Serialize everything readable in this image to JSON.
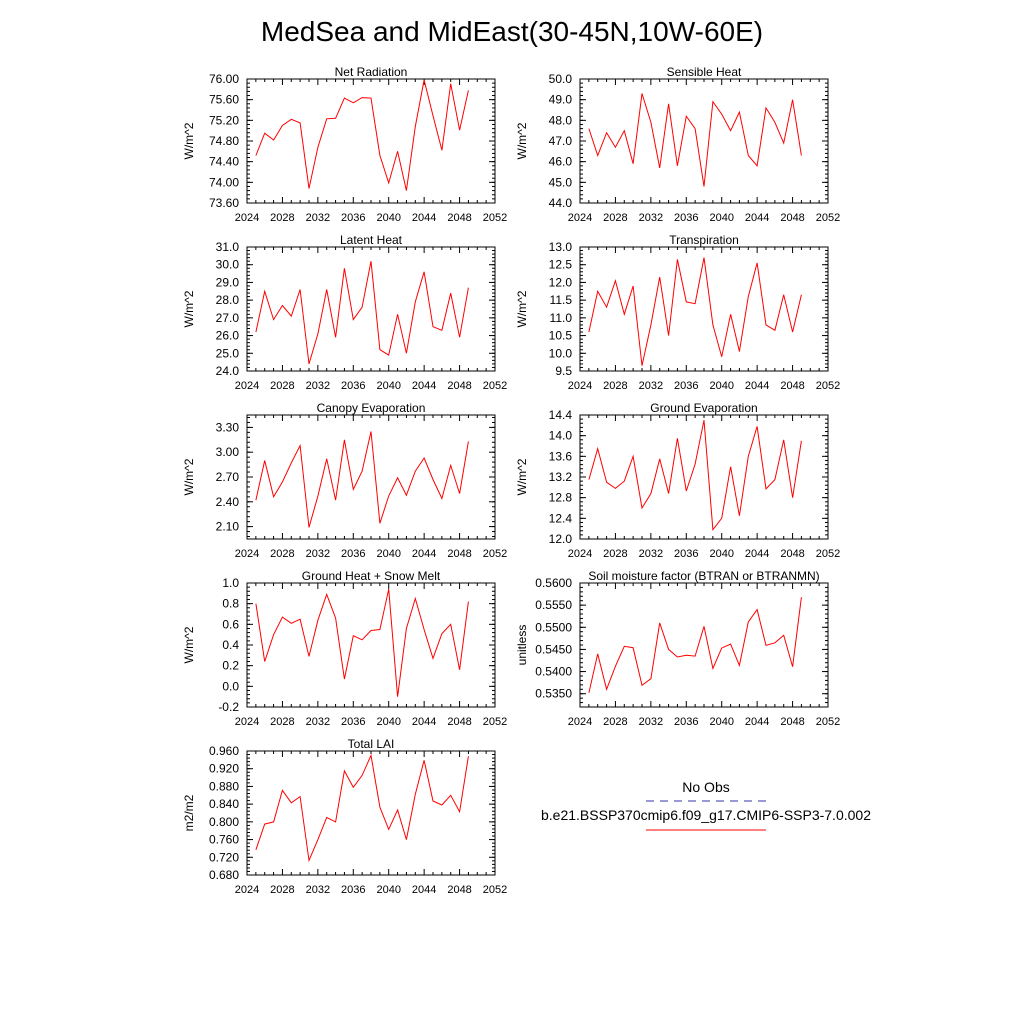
{
  "page_title": "MedSea and MidEast(30-45N,10W-60E)",
  "legend": {
    "obs_label": "No Obs",
    "obs_color": "#3333aa",
    "model_label": "b.e21.BSSP370cmip6.f09_g17.CMIP6-SSP3-7.0.002",
    "model_color": "#ff0000"
  },
  "chart_data": [
    {
      "type": "line",
      "title": "Net Radiation",
      "ylabel": "W/m^2",
      "xlim": [
        2024,
        2052
      ],
      "xticks": [
        "2024",
        "2028",
        "2032",
        "2036",
        "2040",
        "2044",
        "2048",
        "2052"
      ],
      "ylim": [
        73.6,
        76.0
      ],
      "yticks": [
        "73.60",
        "74.00",
        "74.40",
        "74.80",
        "75.20",
        "75.60",
        "76.00"
      ],
      "series": [
        {
          "x": [
            2025,
            2026,
            2027,
            2028,
            2029,
            2030,
            2031,
            2032,
            2033,
            2034,
            2035,
            2036,
            2037,
            2038,
            2039,
            2040,
            2041,
            2042,
            2043,
            2044,
            2045,
            2046,
            2047,
            2048,
            2049
          ],
          "y": [
            74.52,
            74.95,
            74.82,
            75.1,
            75.22,
            75.15,
            73.88,
            74.68,
            75.23,
            75.24,
            75.63,
            75.54,
            75.64,
            75.63,
            74.52,
            73.99,
            74.6,
            73.84,
            75.08,
            75.98,
            75.29,
            74.62,
            75.91,
            75.01,
            75.78
          ]
        }
      ]
    },
    {
      "type": "line",
      "title": "Sensible Heat",
      "ylabel": "W/m^2",
      "xlim": [
        2024,
        2052
      ],
      "xticks": [
        "2024",
        "2028",
        "2032",
        "2036",
        "2040",
        "2044",
        "2048",
        "2052"
      ],
      "ylim": [
        44.0,
        50.0
      ],
      "yticks": [
        "44.0",
        "45.0",
        "46.0",
        "47.0",
        "48.0",
        "49.0",
        "50.0"
      ],
      "series": [
        {
          "x": [
            2025,
            2026,
            2027,
            2028,
            2029,
            2030,
            2031,
            2032,
            2033,
            2034,
            2035,
            2036,
            2037,
            2038,
            2039,
            2040,
            2041,
            2042,
            2043,
            2044,
            2045,
            2046,
            2047,
            2048,
            2049
          ],
          "y": [
            47.6,
            46.3,
            47.4,
            46.7,
            47.5,
            45.9,
            49.3,
            47.9,
            45.7,
            48.8,
            45.8,
            48.2,
            47.6,
            44.8,
            48.9,
            48.3,
            47.5,
            48.4,
            46.3,
            45.8,
            48.6,
            47.9,
            46.9,
            49.0,
            46.3
          ]
        }
      ]
    },
    {
      "type": "line",
      "title": "Latent Heat",
      "ylabel": "W/m^2",
      "xlim": [
        2024,
        2052
      ],
      "xticks": [
        "2024",
        "2028",
        "2032",
        "2036",
        "2040",
        "2044",
        "2048",
        "2052"
      ],
      "ylim": [
        24.0,
        31.0
      ],
      "yticks": [
        "24.0",
        "25.0",
        "26.0",
        "27.0",
        "28.0",
        "29.0",
        "30.0",
        "31.0"
      ],
      "series": [
        {
          "x": [
            2025,
            2026,
            2027,
            2028,
            2029,
            2030,
            2031,
            2032,
            2033,
            2034,
            2035,
            2036,
            2037,
            2038,
            2039,
            2040,
            2041,
            2042,
            2043,
            2044,
            2045,
            2046,
            2047,
            2048,
            2049
          ],
          "y": [
            26.2,
            28.5,
            26.9,
            27.7,
            27.1,
            28.6,
            24.4,
            26.1,
            28.6,
            25.9,
            29.8,
            26.9,
            27.6,
            30.2,
            25.2,
            24.9,
            27.2,
            25.0,
            27.9,
            29.6,
            26.5,
            26.3,
            28.4,
            25.9,
            28.7
          ]
        }
      ]
    },
    {
      "type": "line",
      "title": "Transpiration",
      "ylabel": "W/m^2",
      "xlim": [
        2024,
        2052
      ],
      "xticks": [
        "2024",
        "2028",
        "2032",
        "2036",
        "2040",
        "2044",
        "2048",
        "2052"
      ],
      "ylim": [
        9.5,
        13.0
      ],
      "yticks": [
        "9.5",
        "10.0",
        "10.5",
        "11.0",
        "11.5",
        "12.0",
        "12.5",
        "13.0"
      ],
      "series": [
        {
          "x": [
            2025,
            2026,
            2027,
            2028,
            2029,
            2030,
            2031,
            2032,
            2033,
            2034,
            2035,
            2036,
            2037,
            2038,
            2039,
            2040,
            2041,
            2042,
            2043,
            2044,
            2045,
            2046,
            2047,
            2048,
            2049
          ],
          "y": [
            10.6,
            11.75,
            11.3,
            12.05,
            11.1,
            11.9,
            9.65,
            10.8,
            12.15,
            10.5,
            12.65,
            11.45,
            11.4,
            12.7,
            10.8,
            9.9,
            11.1,
            10.05,
            11.6,
            12.55,
            10.8,
            10.65,
            11.65,
            10.6,
            11.65
          ]
        }
      ]
    },
    {
      "type": "line",
      "title": "Canopy Evaporation",
      "ylabel": "W/m^2",
      "xlim": [
        2024,
        2052
      ],
      "xticks": [
        "2024",
        "2028",
        "2032",
        "2036",
        "2040",
        "2044",
        "2048",
        "2052"
      ],
      "ylim": [
        1.95,
        3.45
      ],
      "yticks": [
        "2.10",
        "2.40",
        "2.70",
        "3.00",
        "3.30"
      ],
      "ytick_values": [
        2.1,
        2.4,
        2.7,
        3.0,
        3.3
      ],
      "series": [
        {
          "x": [
            2025,
            2026,
            2027,
            2028,
            2029,
            2030,
            2031,
            2032,
            2033,
            2034,
            2035,
            2036,
            2037,
            2038,
            2039,
            2040,
            2041,
            2042,
            2043,
            2044,
            2045,
            2046,
            2047,
            2048,
            2049
          ],
          "y": [
            2.42,
            2.9,
            2.46,
            2.64,
            2.87,
            3.08,
            2.09,
            2.47,
            2.92,
            2.42,
            3.15,
            2.55,
            2.77,
            3.25,
            2.14,
            2.47,
            2.69,
            2.48,
            2.77,
            2.93,
            2.67,
            2.44,
            2.84,
            2.5,
            3.13
          ]
        }
      ]
    },
    {
      "type": "line",
      "title": "Ground Evaporation",
      "ylabel": "W/m^2",
      "xlim": [
        2024,
        2052
      ],
      "xticks": [
        "2024",
        "2028",
        "2032",
        "2036",
        "2040",
        "2044",
        "2048",
        "2052"
      ],
      "ylim": [
        12.0,
        14.4
      ],
      "yticks": [
        "12.0",
        "12.4",
        "12.8",
        "13.2",
        "13.6",
        "14.0",
        "14.4"
      ],
      "series": [
        {
          "x": [
            2025,
            2026,
            2027,
            2028,
            2029,
            2030,
            2031,
            2032,
            2033,
            2034,
            2035,
            2036,
            2037,
            2038,
            2039,
            2040,
            2041,
            2042,
            2043,
            2044,
            2045,
            2046,
            2047,
            2048,
            2049
          ],
          "y": [
            13.15,
            13.75,
            13.1,
            12.98,
            13.12,
            13.6,
            12.6,
            12.88,
            13.55,
            12.88,
            13.95,
            12.93,
            13.45,
            14.3,
            12.18,
            12.4,
            13.4,
            12.45,
            13.6,
            14.18,
            12.97,
            13.15,
            13.92,
            12.8,
            13.9
          ]
        }
      ]
    },
    {
      "type": "line",
      "title": "Ground Heat + Snow Melt",
      "ylabel": "W/m^2",
      "xlim": [
        2024,
        2052
      ],
      "xticks": [
        "2024",
        "2028",
        "2032",
        "2036",
        "2040",
        "2044",
        "2048",
        "2052"
      ],
      "ylim": [
        -0.2,
        1.0
      ],
      "yticks": [
        "-0.2",
        "0.0",
        "0.2",
        "0.4",
        "0.6",
        "0.8",
        "1.0"
      ],
      "series": [
        {
          "x": [
            2025,
            2026,
            2027,
            2028,
            2029,
            2030,
            2031,
            2032,
            2033,
            2034,
            2035,
            2036,
            2037,
            2038,
            2039,
            2040,
            2041,
            2042,
            2043,
            2044,
            2045,
            2046,
            2047,
            2048,
            2049
          ],
          "y": [
            0.8,
            0.24,
            0.5,
            0.67,
            0.61,
            0.65,
            0.29,
            0.64,
            0.89,
            0.66,
            0.07,
            0.49,
            0.45,
            0.54,
            0.55,
            0.94,
            -0.1,
            0.56,
            0.85,
            0.55,
            0.27,
            0.51,
            0.6,
            0.16,
            0.82
          ]
        }
      ]
    },
    {
      "type": "line",
      "title": "Soil moisture factor (BTRAN or BTRANMN)",
      "ylabel": "unitless",
      "xlim": [
        2024,
        2052
      ],
      "xticks": [
        "2024",
        "2028",
        "2032",
        "2036",
        "2040",
        "2044",
        "2048",
        "2052"
      ],
      "ylim": [
        0.532,
        0.56
      ],
      "yticks": [
        "0.5350",
        "0.5400",
        "0.5450",
        "0.5500",
        "0.5550",
        "0.5600"
      ],
      "ytick_values": [
        0.535,
        0.54,
        0.545,
        0.55,
        0.555,
        0.56
      ],
      "series": [
        {
          "x": [
            2025,
            2026,
            2027,
            2028,
            2029,
            2030,
            2031,
            2032,
            2033,
            2034,
            2035,
            2036,
            2037,
            2038,
            2039,
            2040,
            2041,
            2042,
            2043,
            2044,
            2045,
            2046,
            2047,
            2048,
            2049
          ],
          "y": [
            0.5352,
            0.544,
            0.536,
            0.5412,
            0.5457,
            0.5454,
            0.5369,
            0.5384,
            0.551,
            0.545,
            0.5433,
            0.5437,
            0.5435,
            0.5502,
            0.5407,
            0.5453,
            0.5462,
            0.5414,
            0.5512,
            0.554,
            0.5459,
            0.5465,
            0.5482,
            0.5411,
            0.5568
          ]
        }
      ]
    },
    {
      "type": "line",
      "title": "Total LAI",
      "ylabel": "m2/m2",
      "xlim": [
        2024,
        2052
      ],
      "xticks": [
        "2024",
        "2028",
        "2032",
        "2036",
        "2040",
        "2044",
        "2048",
        "2052"
      ],
      "ylim": [
        0.68,
        0.96
      ],
      "yticks": [
        "0.680",
        "0.720",
        "0.760",
        "0.800",
        "0.840",
        "0.880",
        "0.920",
        "0.960"
      ],
      "series": [
        {
          "x": [
            2025,
            2026,
            2027,
            2028,
            2029,
            2030,
            2031,
            2032,
            2033,
            2034,
            2035,
            2036,
            2037,
            2038,
            2039,
            2040,
            2041,
            2042,
            2043,
            2044,
            2045,
            2046,
            2047,
            2048,
            2049
          ],
          "y": [
            0.737,
            0.795,
            0.8,
            0.871,
            0.843,
            0.857,
            0.713,
            0.76,
            0.81,
            0.8,
            0.915,
            0.878,
            0.905,
            0.95,
            0.833,
            0.783,
            0.827,
            0.76,
            0.862,
            0.939,
            0.847,
            0.838,
            0.86,
            0.823,
            0.948
          ]
        }
      ]
    }
  ]
}
